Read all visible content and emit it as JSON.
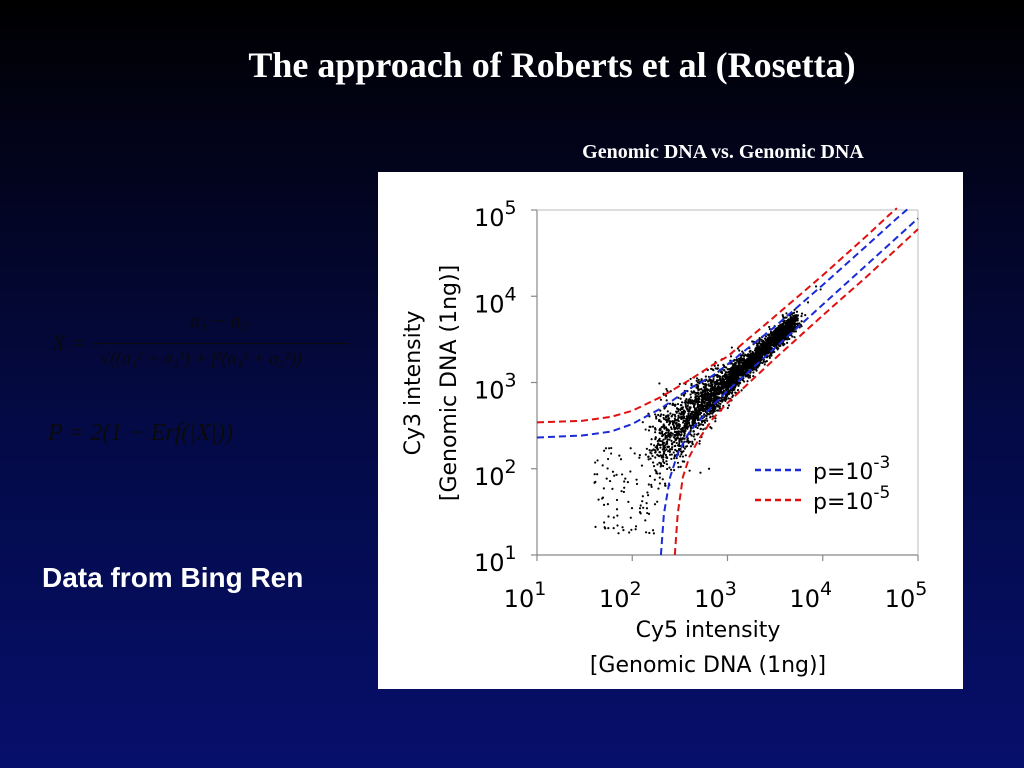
{
  "slide": {
    "title": "The approach of Roberts et al (Rosetta)",
    "side_note": "Data from Bing Ren",
    "background_color": "#040a45"
  },
  "formulas": {
    "x_lhs": "X =",
    "x_numerator": "a₁ − a₂",
    "x_denominator": "√((σ₁² + σ₂²) + f²(a₁² + a₂²))",
    "p_value": "P = 2(1 − Erf(|X|))"
  },
  "chart_data": {
    "type": "scatter",
    "title": "Genomic DNA vs. Genomic DNA",
    "x_scale": "log",
    "y_scale": "log",
    "xlim": [
      10,
      100000
    ],
    "ylim": [
      10,
      100000
    ],
    "xlabel": "Cy5 intensity",
    "xlabel_sub": "[Genomic DNA (1ng)]",
    "ylabel": "Cy3 intensity",
    "ylabel_sub": "[Genomic DNA (1ng)]",
    "x_ticks": [
      {
        "base": "10",
        "exp": "1"
      },
      {
        "base": "10",
        "exp": "2"
      },
      {
        "base": "10",
        "exp": "3"
      },
      {
        "base": "10",
        "exp": "4"
      },
      {
        "base": "10",
        "exp": "5"
      }
    ],
    "y_ticks": [
      {
        "base": "10",
        "exp": "1"
      },
      {
        "base": "10",
        "exp": "2"
      },
      {
        "base": "10",
        "exp": "3"
      },
      {
        "base": "10",
        "exp": "4"
      },
      {
        "base": "10",
        "exp": "5"
      }
    ],
    "grid": false,
    "legend_position": "bottom-right",
    "point_color": "#000000",
    "scatter_cloud": {
      "center_x": [
        160,
        5000
      ],
      "correlation": "y ≈ x",
      "approx_points": 3000,
      "extra_points": [
        [
          60,
          150
        ],
        [
          90,
          70
        ],
        [
          150,
          30
        ],
        [
          70,
          22
        ],
        [
          400,
          95
        ],
        [
          520,
          90
        ],
        [
          640,
          100
        ],
        [
          230,
          620
        ],
        [
          330,
          720
        ],
        [
          280,
          380
        ],
        [
          8500,
          13000
        ],
        [
          9500,
          12000
        ],
        [
          7000,
          8500
        ]
      ]
    },
    "series": [
      {
        "name": "p=10-3",
        "legend_base": "p=10",
        "legend_exp": "-3",
        "color": "#1a2bd8",
        "style": "dashed",
        "upper": [
          [
            10,
            230
          ],
          [
            30,
            243
          ],
          [
            60,
            270
          ],
          [
            100,
            330
          ],
          [
            200,
            500
          ],
          [
            400,
            850
          ],
          [
            700,
            1200
          ],
          [
            1000,
            1620
          ],
          [
            3000,
            4250
          ],
          [
            10000,
            13500
          ],
          [
            30000,
            40000
          ],
          [
            60000,
            80000
          ],
          [
            80000,
            105000
          ]
        ],
        "lower": [
          [
            200,
            10
          ],
          [
            215,
            30
          ],
          [
            250,
            80
          ],
          [
            300,
            150
          ],
          [
            400,
            270
          ],
          [
            700,
            540
          ],
          [
            1000,
            800
          ],
          [
            3000,
            2400
          ],
          [
            10000,
            8000
          ],
          [
            30000,
            24000
          ],
          [
            100000,
            80000
          ]
        ]
      },
      {
        "name": "p=10-5",
        "legend_base": "p=10",
        "legend_exp": "-5",
        "color": "#e01010",
        "style": "dashed",
        "upper": [
          [
            10,
            345
          ],
          [
            30,
            360
          ],
          [
            60,
            400
          ],
          [
            100,
            470
          ],
          [
            200,
            680
          ],
          [
            400,
            1070
          ],
          [
            700,
            1600
          ],
          [
            1000,
            2000
          ],
          [
            3000,
            5600
          ],
          [
            10000,
            17500
          ],
          [
            30000,
            52000
          ],
          [
            50000,
            88000
          ],
          [
            60000,
            105000
          ]
        ],
        "lower": [
          [
            280,
            10
          ],
          [
            300,
            30
          ],
          [
            340,
            80
          ],
          [
            400,
            140
          ],
          [
            500,
            220
          ],
          [
            700,
            380
          ],
          [
            1000,
            580
          ],
          [
            3000,
            1800
          ],
          [
            10000,
            6000
          ],
          [
            30000,
            17500
          ],
          [
            100000,
            60000
          ]
        ]
      }
    ]
  }
}
